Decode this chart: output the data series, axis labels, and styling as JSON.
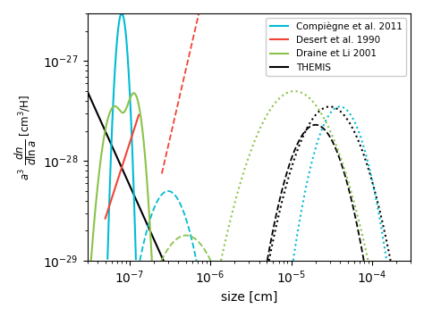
{
  "xlabel": "size [cm]",
  "xlim_low": 3e-08,
  "xlim_high": 0.0003,
  "ylim_low": 1e-29,
  "ylim_high": 3e-27,
  "colors": {
    "compiegne": "#00bcd4",
    "desert": "#f44336",
    "draine": "#8bc34a",
    "themis": "#000000"
  },
  "legend_labels": [
    "Compiègne et al. 2011",
    "Desert et al. 1990",
    "Draine et Li 2001",
    "THEMIS"
  ],
  "figsize": [
    4.74,
    3.55
  ],
  "dpi": 100
}
